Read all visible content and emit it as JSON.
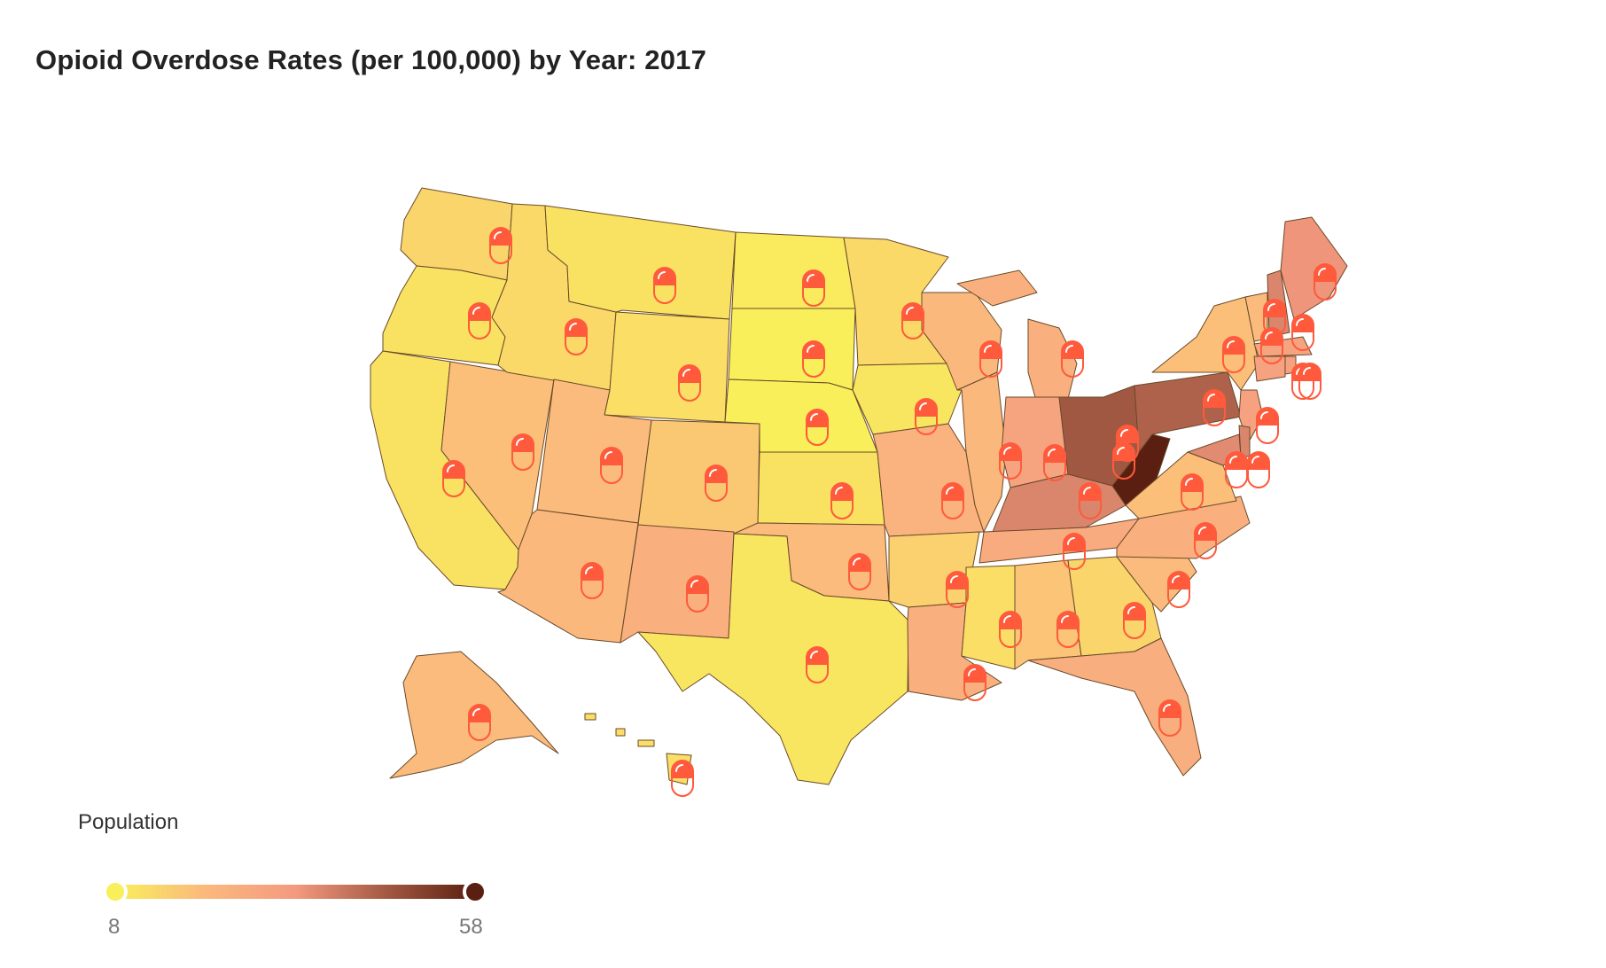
{
  "title": "Opioid Overdose Rates (per 100,000) by Year: 2017",
  "legend": {
    "title": "Population",
    "min_label": "8",
    "max_label": "58",
    "min": 8,
    "max": 58,
    "colors": [
      "#f9ef5a",
      "#fbb97d",
      "#f49a80",
      "#a45a44",
      "#5a1f10"
    ]
  },
  "marker_color": "#ff5a3c",
  "chart_data": {
    "type": "choropleth",
    "value_label": "Opioid overdose rate per 100,000",
    "year": 2017,
    "states": [
      {
        "id": "WA",
        "rate": 14
      },
      {
        "id": "OR",
        "rate": 11
      },
      {
        "id": "CA",
        "rate": 11
      },
      {
        "id": "NV",
        "rate": 19
      },
      {
        "id": "ID",
        "rate": 13
      },
      {
        "id": "MT",
        "rate": 11
      },
      {
        "id": "WY",
        "rate": 12
      },
      {
        "id": "UT",
        "rate": 20
      },
      {
        "id": "AZ",
        "rate": 21
      },
      {
        "id": "CO",
        "rate": 17
      },
      {
        "id": "NM",
        "rate": 24
      },
      {
        "id": "ND",
        "rate": 9
      },
      {
        "id": "SD",
        "rate": 8
      },
      {
        "id": "NE",
        "rate": 8
      },
      {
        "id": "KS",
        "rate": 11
      },
      {
        "id": "OK",
        "rate": 20
      },
      {
        "id": "TX",
        "rate": 10
      },
      {
        "id": "MN",
        "rate": 13
      },
      {
        "id": "IA",
        "rate": 10
      },
      {
        "id": "MO",
        "rate": 23
      },
      {
        "id": "AR",
        "rate": 15
      },
      {
        "id": "LA",
        "rate": 24
      },
      {
        "id": "WI",
        "rate": 21
      },
      {
        "id": "IL",
        "rate": 21
      },
      {
        "id": "MI",
        "rate": 24
      },
      {
        "id": "IN",
        "rate": 29
      },
      {
        "id": "OH",
        "rate": 46
      },
      {
        "id": "KY",
        "rate": 37
      },
      {
        "id": "TN",
        "rate": 26
      },
      {
        "id": "MS",
        "rate": 12
      },
      {
        "id": "AL",
        "rate": 18
      },
      {
        "id": "GA",
        "rate": 14
      },
      {
        "id": "FL",
        "rate": 25
      },
      {
        "id": "SC",
        "rate": 20
      },
      {
        "id": "NC",
        "rate": 24
      },
      {
        "id": "VA",
        "rate": 19
      },
      {
        "id": "WV",
        "rate": 58
      },
      {
        "id": "PA",
        "rate": 44
      },
      {
        "id": "NY",
        "rate": 19
      },
      {
        "id": "VT",
        "rate": 20
      },
      {
        "id": "NH",
        "rate": 37
      },
      {
        "id": "ME",
        "rate": 34
      },
      {
        "id": "MA",
        "rate": 29
      },
      {
        "id": "CT",
        "rate": 30
      },
      {
        "id": "RI",
        "rate": 30
      },
      {
        "id": "NJ",
        "rate": 30
      },
      {
        "id": "DE",
        "rate": 37
      },
      {
        "id": "MD",
        "rate": 36
      },
      {
        "id": "AK",
        "rate": 20
      },
      {
        "id": "HI",
        "rate": 12
      }
    ]
  }
}
